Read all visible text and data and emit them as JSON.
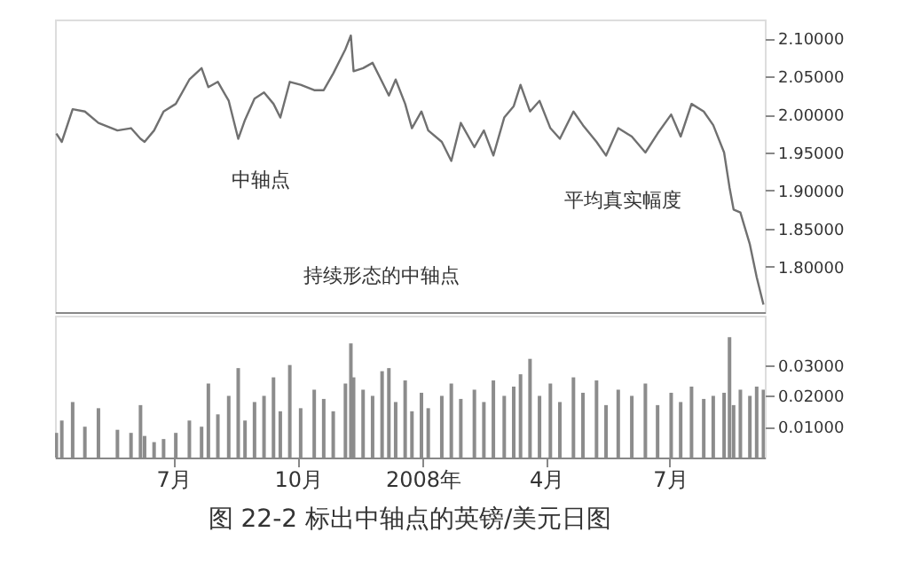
{
  "chart_data": [
    {
      "type": "line",
      "tick_labels": "y",
      "x": [
        "2007-04-06",
        "2007-04-10",
        "2007-04-18",
        "2007-04-27",
        "2007-05-07",
        "2007-05-21",
        "2007-05-31",
        "2007-06-07",
        "2007-06-10",
        "2007-06-17",
        "2007-06-24",
        "2007-07-03",
        "2007-07-13",
        "2007-07-22",
        "2007-07-27",
        "2007-08-03",
        "2007-08-11",
        "2007-08-18",
        "2007-08-23",
        "2007-08-30",
        "2007-09-06",
        "2007-09-13",
        "2007-09-18",
        "2007-09-25",
        "2007-10-03",
        "2007-10-13",
        "2007-10-20",
        "2007-10-27",
        "2007-11-05",
        "2007-11-09",
        "2007-11-11",
        "2007-11-18",
        "2007-11-25",
        "2007-12-02",
        "2007-12-07",
        "2007-12-12",
        "2007-12-19",
        "2007-12-24",
        "2007-12-31",
        "2008-01-05",
        "2008-01-15",
        "2008-01-22",
        "2008-01-29",
        "2008-02-08",
        "2008-02-15",
        "2008-02-22",
        "2008-03-01",
        "2008-03-08",
        "2008-03-13",
        "2008-03-20",
        "2008-03-27",
        "2008-04-04",
        "2008-04-11",
        "2008-04-21",
        "2008-04-28",
        "2008-05-08",
        "2008-05-15",
        "2008-05-24",
        "2008-06-03",
        "2008-06-13",
        "2008-06-22",
        "2008-07-02",
        "2008-07-09",
        "2008-07-17",
        "2008-07-26",
        "2008-08-02",
        "2008-08-10",
        "2008-08-14",
        "2008-08-17",
        "2008-08-22",
        "2008-08-29",
        "2008-09-03",
        "2008-09-08"
      ],
      "series": [
        {
          "color": "#707070",
          "values": [
            1.975,
            1.964,
            2.007,
            2.004,
            1.989,
            1.979,
            1.982,
            1.968,
            1.964,
            1.979,
            2.004,
            2.014,
            2.046,
            2.061,
            2.036,
            2.043,
            2.018,
            1.968,
            1.993,
            2.021,
            2.029,
            2.014,
            1.996,
            2.043,
            2.039,
            2.032,
            2.032,
            2.054,
            2.086,
            2.104,
            2.057,
            2.061,
            2.068,
            2.043,
            2.025,
            2.046,
            2.014,
            1.982,
            2.004,
            1.979,
            1.964,
            1.939,
            1.989,
            1.957,
            1.979,
            1.946,
            1.996,
            2.011,
            2.039,
            2.004,
            2.018,
            1.982,
            1.968,
            2.004,
            1.986,
            1.964,
            1.946,
            1.982,
            1.971,
            1.95,
            1.975,
            2.0,
            1.971,
            2.014,
            2.004,
            1.986,
            1.95,
            1.904,
            1.875,
            1.871,
            1.829,
            1.786,
            1.75
          ]
        }
      ],
      "xlim": [
        "2007-04-05",
        "2008-09-09"
      ],
      "ylim": [
        1.74,
        2.125
      ],
      "yticks": [
        {
          "value": 1.8,
          "label": "1.80000"
        },
        {
          "value": 1.85,
          "label": "1.85000"
        },
        {
          "value": 1.9,
          "label": "1.90000"
        },
        {
          "value": 1.95,
          "label": "1.95000"
        },
        {
          "value": 2.0,
          "label": "2.00000"
        },
        {
          "value": 2.05,
          "label": "2.05000"
        },
        {
          "value": 2.1,
          "label": "2.10000"
        }
      ],
      "annotations": [
        "中轴点",
        "平均真实幅度",
        "持续形态的中轴点"
      ]
    },
    {
      "type": "bar",
      "title": "图 22-2   标出中轴点的英镑/美元日图",
      "x": [
        "2007-04-06",
        "2007-04-10",
        "2007-04-18",
        "2007-04-27",
        "2007-05-07",
        "2007-05-21",
        "2007-05-31",
        "2007-06-07",
        "2007-06-10",
        "2007-06-17",
        "2007-06-24",
        "2007-07-03",
        "2007-07-13",
        "2007-07-22",
        "2007-07-27",
        "2007-08-03",
        "2007-08-11",
        "2007-08-18",
        "2007-08-23",
        "2007-08-30",
        "2007-09-06",
        "2007-09-13",
        "2007-09-18",
        "2007-09-25",
        "2007-10-03",
        "2007-10-13",
        "2007-10-20",
        "2007-10-27",
        "2007-11-05",
        "2007-11-09",
        "2007-11-11",
        "2007-11-18",
        "2007-11-25",
        "2007-12-02",
        "2007-12-07",
        "2007-12-12",
        "2007-12-19",
        "2007-12-24",
        "2007-12-31",
        "2008-01-05",
        "2008-01-15",
        "2008-01-22",
        "2008-01-29",
        "2008-02-08",
        "2008-02-15",
        "2008-02-22",
        "2008-03-01",
        "2008-03-08",
        "2008-03-13",
        "2008-03-20",
        "2008-03-27",
        "2008-04-04",
        "2008-04-11",
        "2008-04-21",
        "2008-04-28",
        "2008-05-08",
        "2008-05-15",
        "2008-05-24",
        "2008-06-03",
        "2008-06-13",
        "2008-06-22",
        "2008-07-02",
        "2008-07-09",
        "2008-07-17",
        "2008-07-26",
        "2008-08-02",
        "2008-08-10",
        "2008-08-14",
        "2008-08-17",
        "2008-08-22",
        "2008-08-29",
        "2008-09-03",
        "2008-09-08"
      ],
      "series": [
        {
          "color": "#8c8c8c",
          "values": [
            0.008,
            0.012,
            0.018,
            0.01,
            0.016,
            0.009,
            0.008,
            0.017,
            0.007,
            0.005,
            0.006,
            0.008,
            0.012,
            0.01,
            0.024,
            0.014,
            0.02,
            0.029,
            0.012,
            0.018,
            0.02,
            0.026,
            0.015,
            0.03,
            0.016,
            0.022,
            0.019,
            0.015,
            0.024,
            0.037,
            0.026,
            0.022,
            0.02,
            0.028,
            0.029,
            0.018,
            0.025,
            0.015,
            0.021,
            0.016,
            0.02,
            0.024,
            0.019,
            0.022,
            0.018,
            0.025,
            0.02,
            0.023,
            0.027,
            0.032,
            0.02,
            0.024,
            0.018,
            0.026,
            0.021,
            0.025,
            0.017,
            0.022,
            0.02,
            0.024,
            0.017,
            0.021,
            0.018,
            0.023,
            0.019,
            0.02,
            0.021,
            0.039,
            0.017,
            0.022,
            0.02,
            0.023,
            0.022
          ]
        }
      ],
      "xlim": [
        "2007-04-05",
        "2008-09-09"
      ],
      "xticks": [
        {
          "value": "2007-07-01",
          "label": "7月"
        },
        {
          "value": "2007-10-01",
          "label": "10月"
        },
        {
          "value": "2008-01-01",
          "label": "2008年"
        },
        {
          "value": "2008-04-01",
          "label": "4月"
        },
        {
          "value": "2008-07-01",
          "label": "7月"
        }
      ],
      "ylim": [
        0,
        0.046
      ],
      "yticks": [
        {
          "value": 0.01,
          "label": "0.01000"
        },
        {
          "value": 0.02,
          "label": "0.02000"
        },
        {
          "value": 0.03,
          "label": "0.03000"
        }
      ]
    }
  ]
}
